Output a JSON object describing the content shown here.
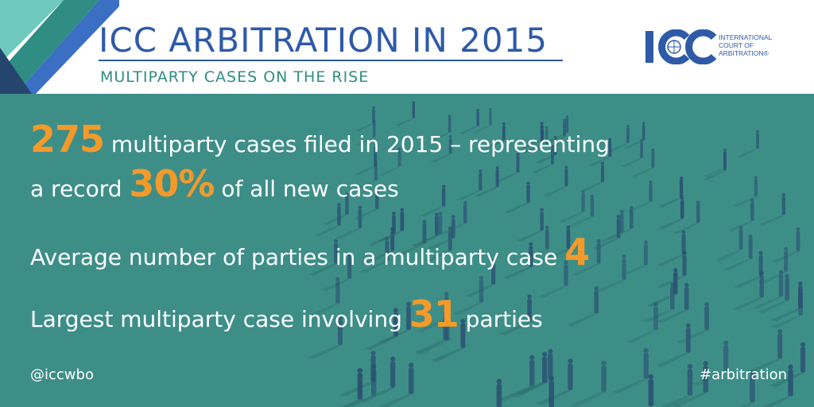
{
  "header": {
    "title": "ICC ARBITRATION IN 2015",
    "subtitle": "MULTIPARTY CASES ON THE RISE",
    "logo": {
      "mark": "ICC",
      "text_lines": [
        "INTERNATIONAL",
        "COURT OF",
        "ARBITRATION®"
      ]
    }
  },
  "stats": {
    "line1": {
      "number": "275",
      "text": " multiparty cases filed in 2015 – representing"
    },
    "line2": {
      "prefix": "a record ",
      "number": "30%",
      "suffix": " of all new cases"
    },
    "line3": {
      "text": "Average number of parties in a multiparty case ",
      "number": "4"
    },
    "line4": {
      "text": "Largest multiparty case involving ",
      "number": "31",
      "suffix": " parties"
    }
  },
  "footer": {
    "handle": "@iccwbo",
    "hashtag": "#arbitration"
  },
  "colors": {
    "brand_blue": "#2e5aa8",
    "teal": "#3e8e88",
    "subtitle_teal": "#2f8d83",
    "accent_orange": "#f39a2b",
    "silhouette": "#2a4f72"
  }
}
